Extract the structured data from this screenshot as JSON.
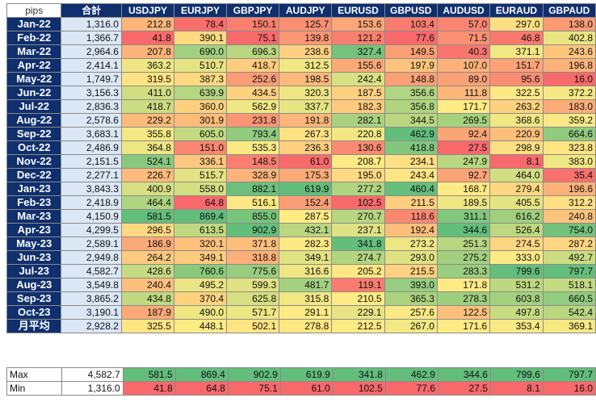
{
  "header": {
    "pips": "pips",
    "total": "合計",
    "pairs": [
      "USDJPY",
      "EURJPY",
      "GBPJPY",
      "AUDJPY",
      "EURUSD",
      "GBPUSD",
      "AUDUSD",
      "EURAUD",
      "GBPAUD"
    ]
  },
  "rows": [
    {
      "label": "Jan-22",
      "total": "1,316.0",
      "values": [
        "212.8",
        "78.4",
        "150.1",
        "125.7",
        "153.6",
        "103.4",
        "57.0",
        "297.0",
        "138.0"
      ]
    },
    {
      "label": "Feb-22",
      "total": "1,366.7",
      "values": [
        "41.8",
        "390.1",
        "75.1",
        "139.8",
        "121.2",
        "77.6",
        "71.5",
        "46.8",
        "402.8"
      ]
    },
    {
      "label": "Mar-22",
      "total": "2,964.6",
      "values": [
        "207.8",
        "690.0",
        "696.3",
        "238.6",
        "327.4",
        "149.5",
        "40.3",
        "371.1",
        "243.6"
      ]
    },
    {
      "label": "Apr-22",
      "total": "2,414.1",
      "values": [
        "363.2",
        "510.7",
        "418.7",
        "312.5",
        "155.6",
        "197.9",
        "107.0",
        "151.7",
        "196.8"
      ]
    },
    {
      "label": "May-22",
      "total": "1,749.7",
      "values": [
        "319.5",
        "387.3",
        "252.6",
        "198.5",
        "242.4",
        "148.8",
        "89.0",
        "95.6",
        "16.0"
      ]
    },
    {
      "label": "Jun-22",
      "total": "3,156.3",
      "values": [
        "411.0",
        "639.9",
        "434.5",
        "320.3",
        "187.5",
        "356.6",
        "111.8",
        "322.5",
        "372.2"
      ]
    },
    {
      "label": "Jul-22",
      "total": "2,836.3",
      "values": [
        "418.7",
        "360.0",
        "562.9",
        "337.7",
        "182.3",
        "356.8",
        "171.7",
        "263.2",
        "183.0"
      ]
    },
    {
      "label": "Aug-22",
      "total": "2,578.6",
      "values": [
        "229.2",
        "301.9",
        "231.8",
        "191.8",
        "282.1",
        "344.5",
        "269.5",
        "368.6",
        "359.2"
      ]
    },
    {
      "label": "Sep-22",
      "total": "3,683.1",
      "values": [
        "355.8",
        "605.0",
        "793.4",
        "267.3",
        "220.8",
        "462.9",
        "92.4",
        "220.9",
        "664.6"
      ]
    },
    {
      "label": "Oct-22",
      "total": "2,486.9",
      "values": [
        "364.8",
        "151.0",
        "535.3",
        "236.3",
        "130.6",
        "418.8",
        "27.5",
        "298.9",
        "323.8"
      ]
    },
    {
      "label": "Nov-22",
      "total": "2,151.5",
      "values": [
        "524.1",
        "336.1",
        "148.5",
        "61.0",
        "208.7",
        "234.1",
        "247.9",
        "8.1",
        "383.0"
      ]
    },
    {
      "label": "Dec-22",
      "total": "2,277.1",
      "values": [
        "226.7",
        "515.7",
        "328.9",
        "175.3",
        "195.0",
        "243.4",
        "92.7",
        "464.0",
        "35.4"
      ]
    },
    {
      "label": "Jan-23",
      "total": "3,843.3",
      "values": [
        "400.9",
        "558.0",
        "882.1",
        "619.9",
        "277.2",
        "460.4",
        "168.7",
        "279.4",
        "196.6"
      ]
    },
    {
      "label": "Feb-23",
      "total": "2,418.9",
      "values": [
        "464.4",
        "64.8",
        "516.1",
        "152.4",
        "102.5",
        "211.5",
        "189.5",
        "405.5",
        "312.2"
      ]
    },
    {
      "label": "Mar-23",
      "total": "4,150.9",
      "values": [
        "581.5",
        "869.4",
        "855.0",
        "287.5",
        "270.7",
        "118.6",
        "311.1",
        "616.2",
        "240.8"
      ]
    },
    {
      "label": "Apr-23",
      "total": "4,299.5",
      "values": [
        "296.5",
        "613.5",
        "902.9",
        "432.1",
        "237.1",
        "192.4",
        "344.6",
        "526.4",
        "754.0"
      ]
    },
    {
      "label": "May-23",
      "total": "2,589.1",
      "values": [
        "186.9",
        "320.1",
        "371.8",
        "282.3",
        "341.8",
        "273.2",
        "251.3",
        "274.5",
        "287.2"
      ]
    },
    {
      "label": "Jun-23",
      "total": "2,949.8",
      "values": [
        "264.2",
        "349.1",
        "318.8",
        "349.1",
        "274.7",
        "293.0",
        "275.2",
        "333.0",
        "492.7"
      ]
    },
    {
      "label": "Jul-23",
      "total": "4,582.7",
      "values": [
        "428.6",
        "760.6",
        "775.6",
        "316.6",
        "205.2",
        "215.5",
        "283.3",
        "799.6",
        "797.7"
      ]
    },
    {
      "label": "Aug-23",
      "total": "3,549.8",
      "values": [
        "240.4",
        "495.2",
        "599.3",
        "481.7",
        "119.1",
        "393.0",
        "171.8",
        "531.2",
        "518.1"
      ]
    },
    {
      "label": "Sep-23",
      "total": "3,865.2",
      "values": [
        "434.8",
        "370.4",
        "625.8",
        "315.8",
        "210.5",
        "365.3",
        "278.3",
        "603.8",
        "660.5"
      ]
    },
    {
      "label": "Oct-23",
      "total": "3,190.1",
      "values": [
        "187.9",
        "490.0",
        "571.7",
        "291.1",
        "229.1",
        "257.6",
        "122.5",
        "497.8",
        "542.4"
      ]
    },
    {
      "label": "月平均",
      "total": "2,928.2",
      "values": [
        "325.5",
        "448.1",
        "502.1",
        "278.8",
        "212.5",
        "267.0",
        "171.6",
        "353.4",
        "369.1"
      ]
    }
  ],
  "stats": [
    {
      "label": "Max",
      "total": "4,582.7",
      "values": [
        "581.5",
        "869.4",
        "902.9",
        "619.9",
        "341.8",
        "462.9",
        "344.6",
        "799.6",
        "797.7"
      ]
    },
    {
      "label": "Min",
      "total": "1,316.0",
      "values": [
        "41.8",
        "64.8",
        "75.1",
        "61.0",
        "102.5",
        "77.6",
        "27.5",
        "8.1",
        "16.0"
      ]
    }
  ],
  "colors": {
    "header_bg": "#0f2f6e",
    "total_bg": "#dbe7f5",
    "scale_low": "#f8696b",
    "scale_mid": "#ffeb84",
    "scale_high": "#63be7b"
  }
}
